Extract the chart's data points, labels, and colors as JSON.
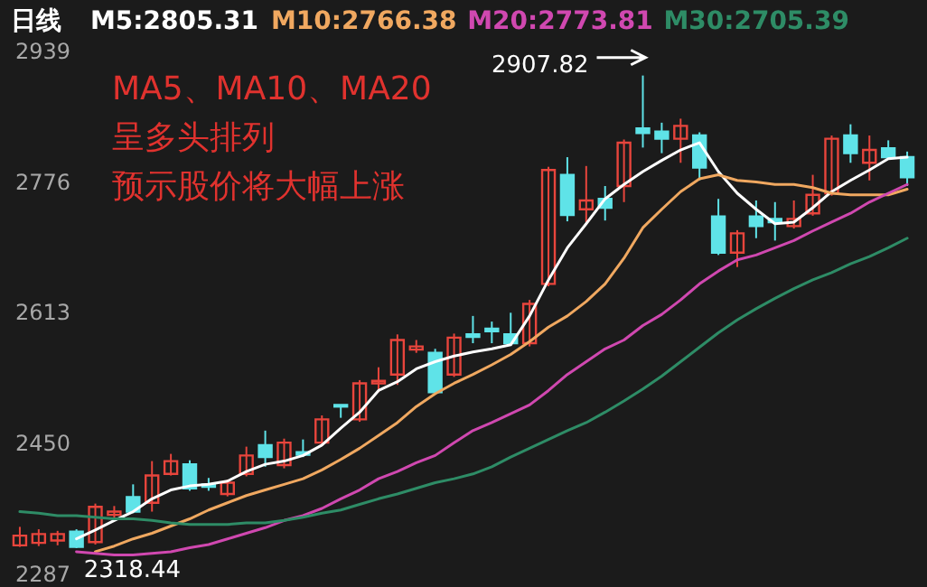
{
  "chart_data": {
    "type": "candlestick",
    "title": "日线",
    "legend": "top",
    "categories": [
      null,
      null,
      null,
      null,
      null,
      null,
      null,
      null,
      null,
      null,
      null,
      null,
      null,
      null,
      null,
      null,
      null,
      null,
      null,
      null,
      null,
      null,
      null,
      null,
      null,
      null,
      null,
      null,
      null,
      null,
      null,
      null,
      null,
      null,
      null,
      null,
      null,
      null,
      null,
      null,
      null,
      null,
      null,
      null,
      null,
      null,
      null,
      null
    ],
    "ohlc": [
      [
        2322,
        2345,
        2320,
        2334
      ],
      [
        2325,
        2342,
        2321,
        2336
      ],
      [
        2328,
        2340,
        2322,
        2336
      ],
      [
        2339,
        2342,
        2318.44,
        2320
      ],
      [
        2326,
        2374,
        2323,
        2370
      ],
      [
        2360,
        2371,
        2356,
        2364
      ],
      [
        2382,
        2398,
        2362,
        2364
      ],
      [
        2375,
        2427,
        2364,
        2409
      ],
      [
        2411,
        2436,
        2409,
        2427
      ],
      [
        2423,
        2428,
        2390,
        2393
      ],
      [
        2398,
        2406,
        2390,
        2395
      ],
      [
        2386,
        2404,
        2383,
        2400
      ],
      [
        2411,
        2445,
        2408,
        2434
      ],
      [
        2447,
        2465,
        2420,
        2432
      ],
      [
        2422,
        2455,
        2418,
        2450
      ],
      [
        2438,
        2454,
        2432,
        2435
      ],
      [
        2450,
        2484,
        2447,
        2479
      ],
      [
        2497,
        2497,
        2481,
        2495
      ],
      [
        2479,
        2528,
        2476,
        2524
      ],
      [
        2524,
        2544,
        2513,
        2527
      ],
      [
        2535,
        2585,
        2522,
        2578
      ],
      [
        2566,
        2578,
        2562,
        2570
      ],
      [
        2562,
        2567,
        2510,
        2513
      ],
      [
        2535,
        2586,
        2532,
        2581
      ],
      [
        2585,
        2608,
        2574,
        2582
      ],
      [
        2592,
        2601,
        2574,
        2589
      ],
      [
        2585,
        2612,
        2571,
        2574
      ],
      [
        2574,
        2628,
        2570,
        2623
      ],
      [
        2648,
        2794,
        2645,
        2790
      ],
      [
        2784,
        2806,
        2726,
        2734
      ],
      [
        2741,
        2795,
        2725,
        2752
      ],
      [
        2754,
        2770,
        2727,
        2743
      ],
      [
        2770,
        2828,
        2750,
        2824
      ],
      [
        2842,
        2907.82,
        2818,
        2836
      ],
      [
        2838,
        2849,
        2811,
        2829
      ],
      [
        2829,
        2854,
        2799,
        2845
      ],
      [
        2833,
        2837,
        2777,
        2793
      ],
      [
        2732,
        2754,
        2684,
        2687
      ],
      [
        2687,
        2715,
        2669,
        2711
      ],
      [
        2732,
        2752,
        2705,
        2720
      ],
      [
        2729,
        2750,
        2702,
        2725
      ],
      [
        2720,
        2752,
        2717,
        2729
      ],
      [
        2736,
        2784,
        2733,
        2759
      ],
      [
        2761,
        2833,
        2758,
        2829
      ],
      [
        2833,
        2847,
        2799,
        2811
      ],
      [
        2799,
        2833,
        2777,
        2815
      ],
      [
        2817,
        2827,
        2803,
        2806
      ],
      [
        2806,
        2813,
        2770,
        2781
      ]
    ],
    "colors": [
      "#e8453c",
      "#e8453c",
      "#e8453c",
      "#5fe3e8",
      "#e8453c",
      "#e8453c",
      "#5fe3e8",
      "#e8453c",
      "#e8453c",
      "#5fe3e8",
      "#5fe3e8",
      "#e8453c",
      "#e8453c",
      "#5fe3e8",
      "#e8453c",
      "#5fe3e8",
      "#e8453c",
      "#5fe3e8",
      "#e8453c",
      "#e8453c",
      "#e8453c",
      "#e8453c",
      "#5fe3e8",
      "#e8453c",
      "#5fe3e8",
      "#5fe3e8",
      "#5fe3e8",
      "#e8453c",
      "#e8453c",
      "#5fe3e8",
      "#e8453c",
      "#5fe3e8",
      "#e8453c",
      "#5fe3e8",
      "#5fe3e8",
      "#e8453c",
      "#5fe3e8",
      "#5fe3e8",
      "#e8453c",
      "#5fe3e8",
      "#5fe3e8",
      "#e8453c",
      "#e8453c",
      "#e8453c",
      "#5fe3e8",
      "#e8453c",
      "#5fe3e8",
      "#5fe3e8"
    ],
    "series": [
      {
        "name": "M5:2805.31",
        "type": "line",
        "color": "#ffffff",
        "values": [
          null,
          null,
          null,
          2330,
          2341,
          2353,
          2364,
          2380,
          2391,
          2396,
          2398,
          2402,
          2414,
          2423,
          2427,
          2434,
          2447,
          2468,
          2488,
          2515,
          2526,
          2542,
          2551,
          2558,
          2563,
          2567,
          2572,
          2608,
          2653,
          2693,
          2723,
          2754,
          2772,
          2788,
          2802,
          2815,
          2824,
          2788,
          2761,
          2741,
          2723,
          2725,
          2743,
          2763,
          2777,
          2790,
          2804,
          2806
        ]
      },
      {
        "name": "M10:2766.38",
        "type": "line",
        "color": "#f0a860",
        "values": [
          null,
          null,
          null,
          null,
          2314,
          2321,
          2330,
          2337,
          2346,
          2355,
          2366,
          2375,
          2384,
          2391,
          2398,
          2405,
          2416,
          2429,
          2443,
          2459,
          2475,
          2495,
          2511,
          2524,
          2535,
          2547,
          2560,
          2576,
          2594,
          2608,
          2626,
          2648,
          2680,
          2718,
          2741,
          2763,
          2779,
          2784,
          2777,
          2775,
          2772,
          2772,
          2768,
          2761,
          2759,
          2759,
          2759,
          2766
        ]
      },
      {
        "name": "M20:2773.81",
        "type": "line",
        "color": "#d048b0",
        "values": [
          null,
          null,
          null,
          2314,
          2312,
          2310,
          2310,
          2312,
          2314,
          2319,
          2323,
          2330,
          2337,
          2344,
          2353,
          2359,
          2368,
          2380,
          2391,
          2405,
          2414,
          2425,
          2434,
          2450,
          2465,
          2475,
          2486,
          2497,
          2515,
          2535,
          2551,
          2567,
          2578,
          2596,
          2610,
          2628,
          2648,
          2664,
          2678,
          2684,
          2693,
          2702,
          2714,
          2725,
          2736,
          2750,
          2761,
          2772
        ]
      },
      {
        "name": "M30:2705.39",
        "type": "line",
        "color": "#2e8c66",
        "values": [
          2364,
          2362,
          2359,
          2359,
          2357,
          2355,
          2355,
          2353,
          2350,
          2348,
          2348,
          2348,
          2350,
          2350,
          2353,
          2357,
          2362,
          2366,
          2373,
          2380,
          2386,
          2393,
          2400,
          2405,
          2411,
          2420,
          2432,
          2443,
          2454,
          2465,
          2475,
          2488,
          2502,
          2517,
          2533,
          2551,
          2569,
          2587,
          2603,
          2617,
          2630,
          2642,
          2653,
          2662,
          2673,
          2682,
          2693,
          2705
        ]
      }
    ],
    "ylim": [
      2270,
      3002
    ],
    "yticks": [
      2939,
      2776,
      2613,
      2450,
      2287
    ],
    "annotations": [
      "MA5、MA10、MA20",
      "呈多头排列",
      "预示股价将大幅上涨",
      "2907.82",
      "2318.44"
    ]
  }
}
